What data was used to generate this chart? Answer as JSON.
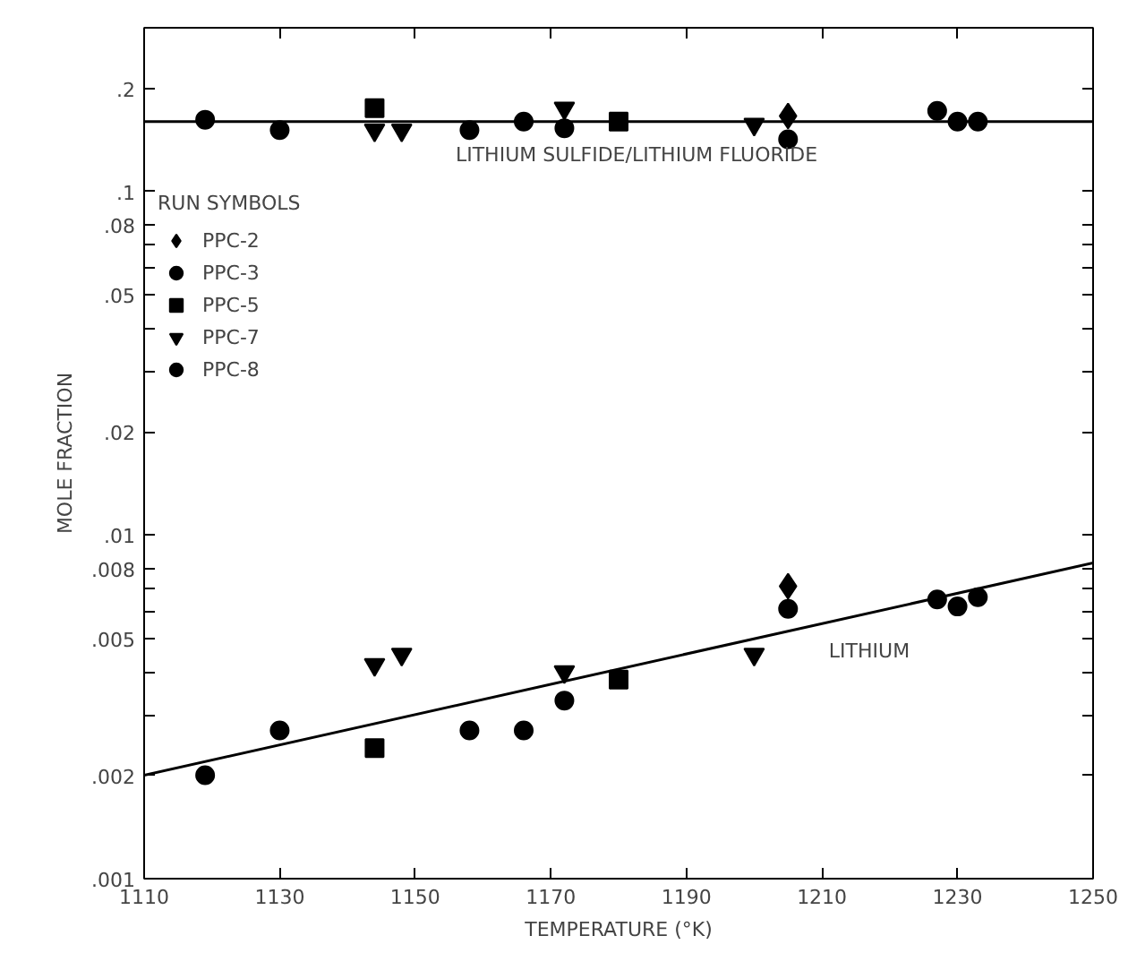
{
  "chart_data": {
    "type": "scatter",
    "xlabel": "TEMPERATURE (°K)",
    "ylabel": "MOLE FRACTION",
    "legend_title": "RUN SYMBOLS",
    "legend": "top left",
    "grid": false,
    "log": "y",
    "xlim": [
      1110,
      1250
    ],
    "xticks": [
      1110,
      1130,
      1150,
      1170,
      1190,
      1210,
      1230,
      1250
    ],
    "ylim": [
      0.001,
      0.3
    ],
    "yticks": [
      {
        "value": 0.001,
        "label": ".001"
      },
      {
        "value": 0.002,
        "label": ".002"
      },
      {
        "value": 0.003,
        "label": null
      },
      {
        "value": 0.004,
        "label": null
      },
      {
        "value": 0.005,
        "label": ".005"
      },
      {
        "value": 0.006,
        "label": null
      },
      {
        "value": 0.007,
        "label": null
      },
      {
        "value": 0.008,
        "label": ".008"
      },
      {
        "value": 0.01,
        "label": ".01"
      },
      {
        "value": 0.02,
        "label": ".02"
      },
      {
        "value": 0.03,
        "label": null
      },
      {
        "value": 0.04,
        "label": null
      },
      {
        "value": 0.05,
        "label": ".05"
      },
      {
        "value": 0.06,
        "label": null
      },
      {
        "value": 0.07,
        "label": null
      },
      {
        "value": 0.08,
        "label": ".08"
      },
      {
        "value": 0.1,
        "label": ".1"
      },
      {
        "value": 0.2,
        "label": ".2"
      }
    ],
    "series": [
      {
        "name": "PPC-2",
        "color": "#000000",
        "marker": "diamond",
        "x": [
          1205,
          1205
        ],
        "values": [
          0.166,
          0.0071
        ]
      },
      {
        "name": "PPC-3",
        "color": "#000000",
        "marker": "circle",
        "x": [
          1130,
          1130,
          1172,
          1172,
          1205,
          1205,
          1230,
          1230,
          1233,
          1233
        ],
        "values": [
          0.151,
          0.0027,
          0.153,
          0.0033,
          0.142,
          0.0061,
          0.16,
          0.0062,
          0.16,
          0.0066
        ]
      },
      {
        "name": "PPC-5",
        "color": "#000000",
        "marker": "square",
        "x": [
          1144,
          1144,
          1180,
          1180
        ],
        "values": [
          0.175,
          0.0024,
          0.16,
          0.0038
        ]
      },
      {
        "name": "PPC-7",
        "color": "#000000",
        "marker": "triangle",
        "x": [
          1144,
          1144,
          1148,
          1148,
          1172,
          1172,
          1200,
          1200
        ],
        "values": [
          0.151,
          0.0042,
          0.151,
          0.0045,
          0.175,
          0.004,
          0.157,
          0.0045
        ]
      },
      {
        "name": "PPC-8",
        "color": "#000000",
        "marker": "circle",
        "x": [
          1119,
          1119,
          1158,
          1158,
          1166,
          1166,
          1227,
          1227
        ],
        "values": [
          0.162,
          0.002,
          0.151,
          0.0027,
          0.16,
          0.0027,
          0.172,
          0.0065
        ]
      },
      {
        "type": "line",
        "color": "#000000",
        "marker": "none",
        "x": [
          1110,
          1250
        ],
        "values": [
          0.16,
          0.16
        ]
      },
      {
        "type": "line",
        "color": "#000000",
        "marker": "none",
        "x": [
          1110,
          1250
        ],
        "values": [
          0.002,
          0.0083
        ]
      }
    ],
    "annotations": [
      "LITHIUM SULFIDE/LITHIUM FLUORIDE",
      "LITHIUM"
    ]
  }
}
